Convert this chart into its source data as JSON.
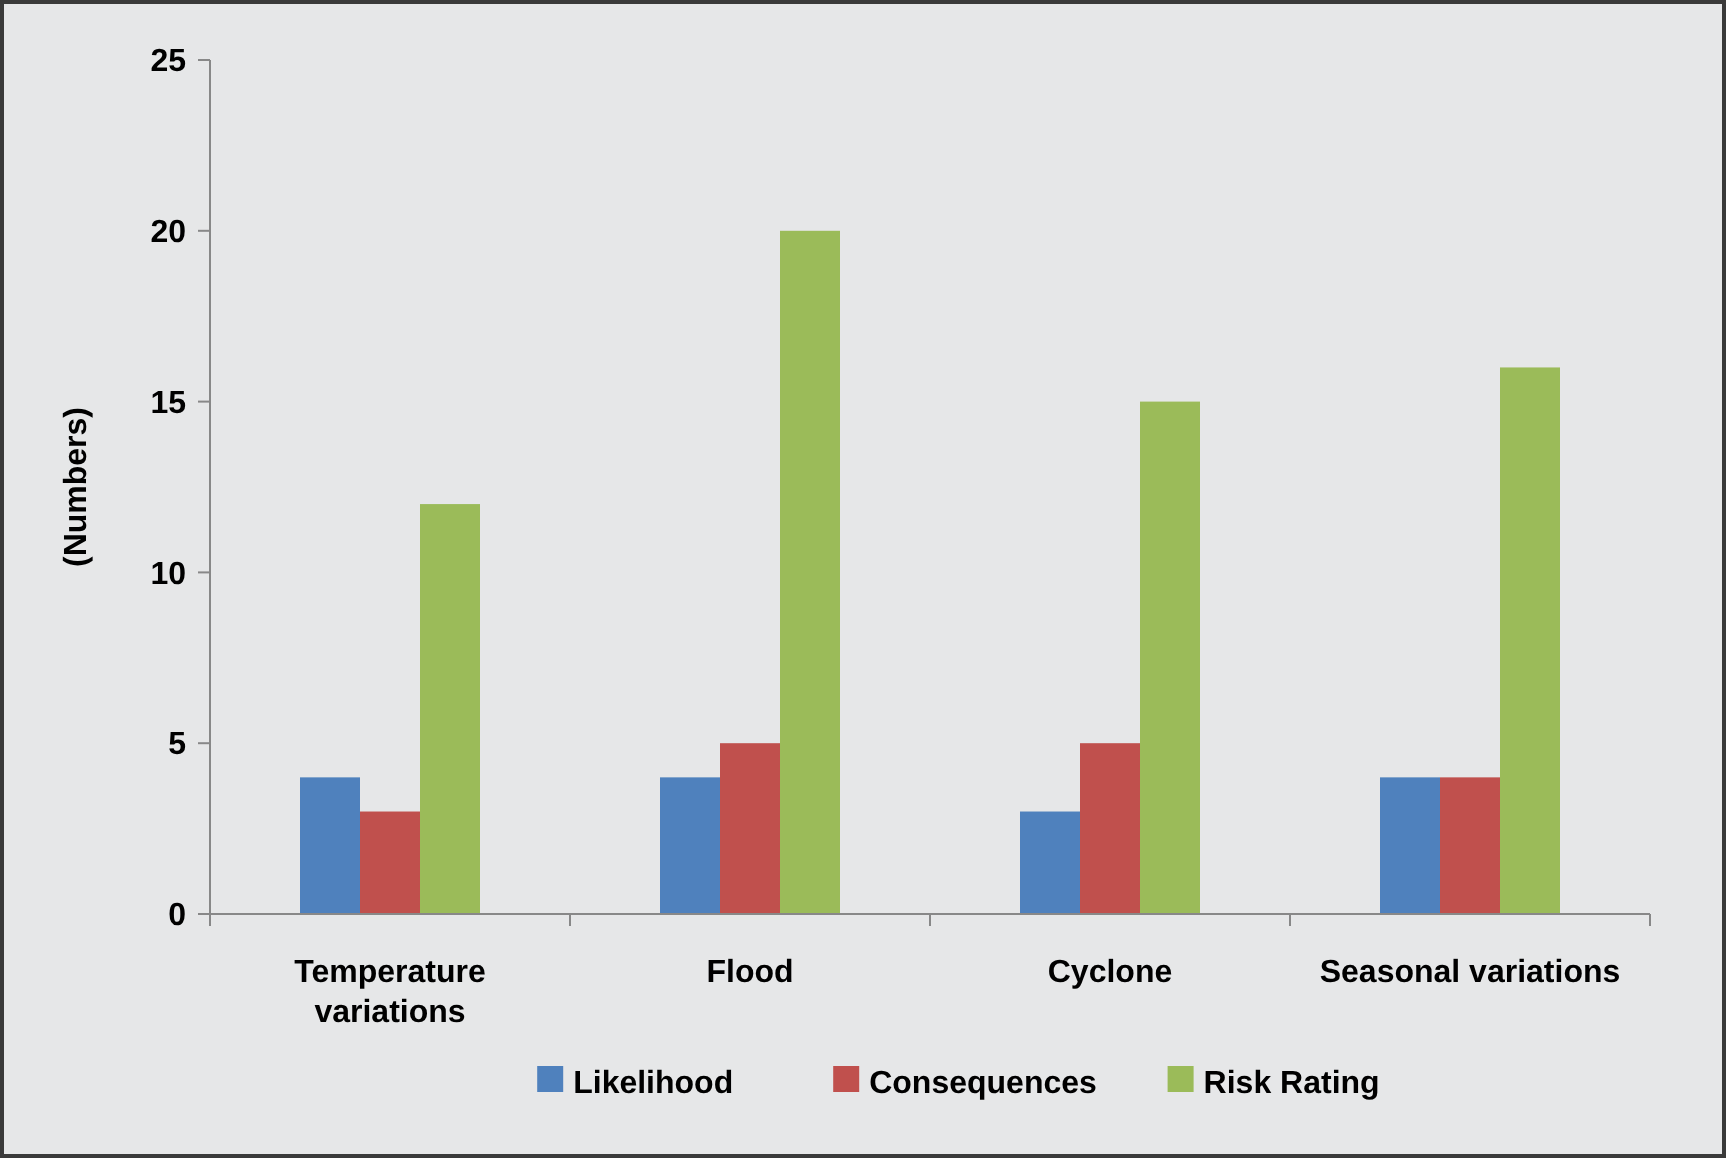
{
  "chart_data": {
    "type": "bar",
    "ylabel": "(Numbers)",
    "categories": [
      "Temperature variations",
      "Flood",
      "Cyclone",
      "Seasonal variations"
    ],
    "series": [
      {
        "name": "Likelihood",
        "color": "#4f81bd",
        "values": [
          4,
          4,
          3,
          4
        ]
      },
      {
        "name": "Consequences",
        "color": "#c0504d",
        "values": [
          3,
          5,
          5,
          4
        ]
      },
      {
        "name": "Risk Rating",
        "color": "#9bbb59",
        "values": [
          12,
          20,
          15,
          16
        ]
      }
    ],
    "ylim": [
      0,
      25
    ],
    "yticks": [
      0,
      5,
      10,
      15,
      20,
      25
    ],
    "grid": false,
    "legend": "bottom"
  }
}
